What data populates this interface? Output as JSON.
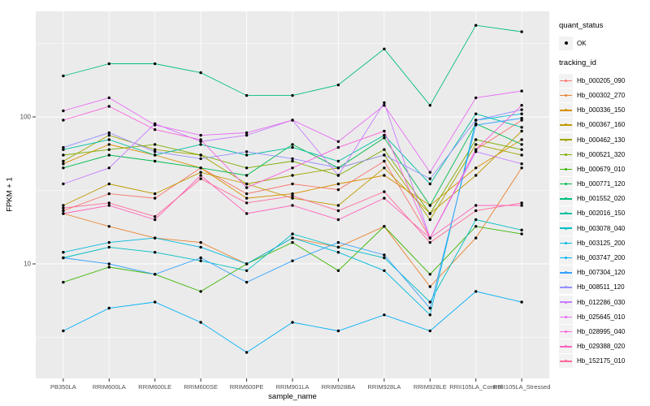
{
  "figure": {
    "x_axis_title": "sample_name",
    "y_axis_title": "FPKM + 1",
    "y_tick_labels": [
      "100",
      "10"
    ]
  },
  "legend": {
    "quant_status_title": "quant_status",
    "quant_status_items": [
      {
        "label": "OK",
        "marker": "point-icon"
      }
    ],
    "tracking_id_title": "tracking_id"
  },
  "chart_data": {
    "type": "line",
    "x_type": "categorical",
    "y_scale": "log10",
    "title": "",
    "xlabel": "sample_name",
    "ylabel": "FPKM + 1",
    "y_major_ticks": [
      100,
      10
    ],
    "y_minor_ticks": [
      316.23,
      31.623,
      3.1623
    ],
    "ylim": [
      1.66,
      522
    ],
    "grid": true,
    "legend_position": "right",
    "panel_background": "#EBEBEB",
    "gridline_color": "#FFFFFF",
    "point_color": "#000000",
    "categories": [
      "PB350LA",
      "RRIM600LA",
      "RRIM600LE",
      "RRIM600SE",
      "RRIM600PE",
      "RRIM901LA",
      "RRIM928BA",
      "RRIM928LA",
      "RRIM928LE",
      "RRII105LA_Control",
      "RRII105LA_Stressed"
    ],
    "series": [
      {
        "name": "Hb_000205_090",
        "color": "#F8766D",
        "values": [
          23,
          30,
          28,
          45,
          30,
          35,
          32,
          50,
          15,
          60,
          95
        ]
      },
      {
        "name": "Hb_000302_270",
        "color": "#EA8331",
        "values": [
          22,
          18,
          15,
          14,
          10,
          15,
          13,
          18,
          7,
          15,
          45
        ]
      },
      {
        "name": "Hb_000336_150",
        "color": "#D89000",
        "values": [
          48,
          65,
          55,
          45,
          28,
          30,
          35,
          40,
          25,
          45,
          70
        ]
      },
      {
        "name": "Hb_000367_160",
        "color": "#C09B00",
        "values": [
          25,
          35,
          30,
          42,
          35,
          28,
          25,
          45,
          22,
          40,
          80
        ]
      },
      {
        "name": "Hb_000462_130",
        "color": "#A3A500",
        "values": [
          50,
          75,
          60,
          55,
          35,
          40,
          45,
          55,
          20,
          65,
          55
        ]
      },
      {
        "name": "Hb_000521_320",
        "color": "#7CAE00",
        "values": [
          55,
          60,
          65,
          55,
          45,
          50,
          40,
          60,
          22,
          70,
          60
        ]
      },
      {
        "name": "Hb_000679_010",
        "color": "#39B600",
        "values": [
          7.5,
          9.5,
          8.5,
          6.5,
          10,
          14,
          9,
          18,
          8.5,
          18,
          16
        ]
      },
      {
        "name": "Hb_000771_120",
        "color": "#00BB4E",
        "values": [
          45,
          55,
          50,
          45,
          40,
          65,
          45,
          72,
          25,
          90,
          65
        ]
      },
      {
        "name": "Hb_001552_020",
        "color": "#00BF7D",
        "values": [
          190,
          230,
          230,
          200,
          140,
          140,
          165,
          290,
          120,
          420,
          380
        ]
      },
      {
        "name": "Hb_002016_150",
        "color": "#00C1A3",
        "values": [
          60,
          70,
          55,
          65,
          55,
          62,
          50,
          75,
          35,
          105,
          85
        ]
      },
      {
        "name": "Hb_003078_040",
        "color": "#00BFC4",
        "values": [
          11,
          13,
          12,
          10.5,
          9,
          16,
          13,
          11,
          5.5,
          20,
          17
        ]
      },
      {
        "name": "Hb_003125_200",
        "color": "#00BAE0",
        "values": [
          12,
          14,
          15,
          13,
          10,
          15,
          12,
          9,
          4.5,
          95,
          105
        ]
      },
      {
        "name": "Hb_003747_200",
        "color": "#00B0F6",
        "values": [
          3.5,
          5,
          5.5,
          4,
          2.5,
          4,
          3.5,
          4.5,
          3.5,
          6.5,
          5.5
        ]
      },
      {
        "name": "Hb_007304_120",
        "color": "#35A2FF",
        "values": [
          11,
          10,
          8.5,
          11,
          7.5,
          10.5,
          14,
          11.5,
          5,
          88,
          98
        ]
      },
      {
        "name": "Hb_008511_120",
        "color": "#9590FF",
        "values": [
          62,
          78,
          58,
          52,
          58,
          52,
          45,
          55,
          38,
          95,
          112
        ]
      },
      {
        "name": "Hb_012286_030",
        "color": "#C77CFF",
        "values": [
          35,
          45,
          90,
          68,
          75,
          95,
          40,
          125,
          15,
          58,
          48
        ]
      },
      {
        "name": "Hb_025645_010",
        "color": "#E76BF3",
        "values": [
          110,
          135,
          88,
          75,
          78,
          95,
          68,
          120,
          42,
          135,
          150
        ]
      },
      {
        "name": "Hb_028995_040",
        "color": "#FA62DB",
        "values": [
          95,
          118,
          82,
          70,
          33,
          45,
          62,
          80,
          15,
          60,
          120
        ]
      },
      {
        "name": "Hb_029388_020",
        "color": "#FF62BC",
        "values": [
          22,
          25,
          20,
          40,
          22,
          25,
          20,
          28,
          15,
          25,
          25
        ]
      },
      {
        "name": "Hb_152175_010",
        "color": "#FF6A98",
        "values": [
          24,
          26,
          21,
          38,
          26,
          29,
          23,
          31,
          14,
          23,
          26
        ]
      }
    ]
  }
}
